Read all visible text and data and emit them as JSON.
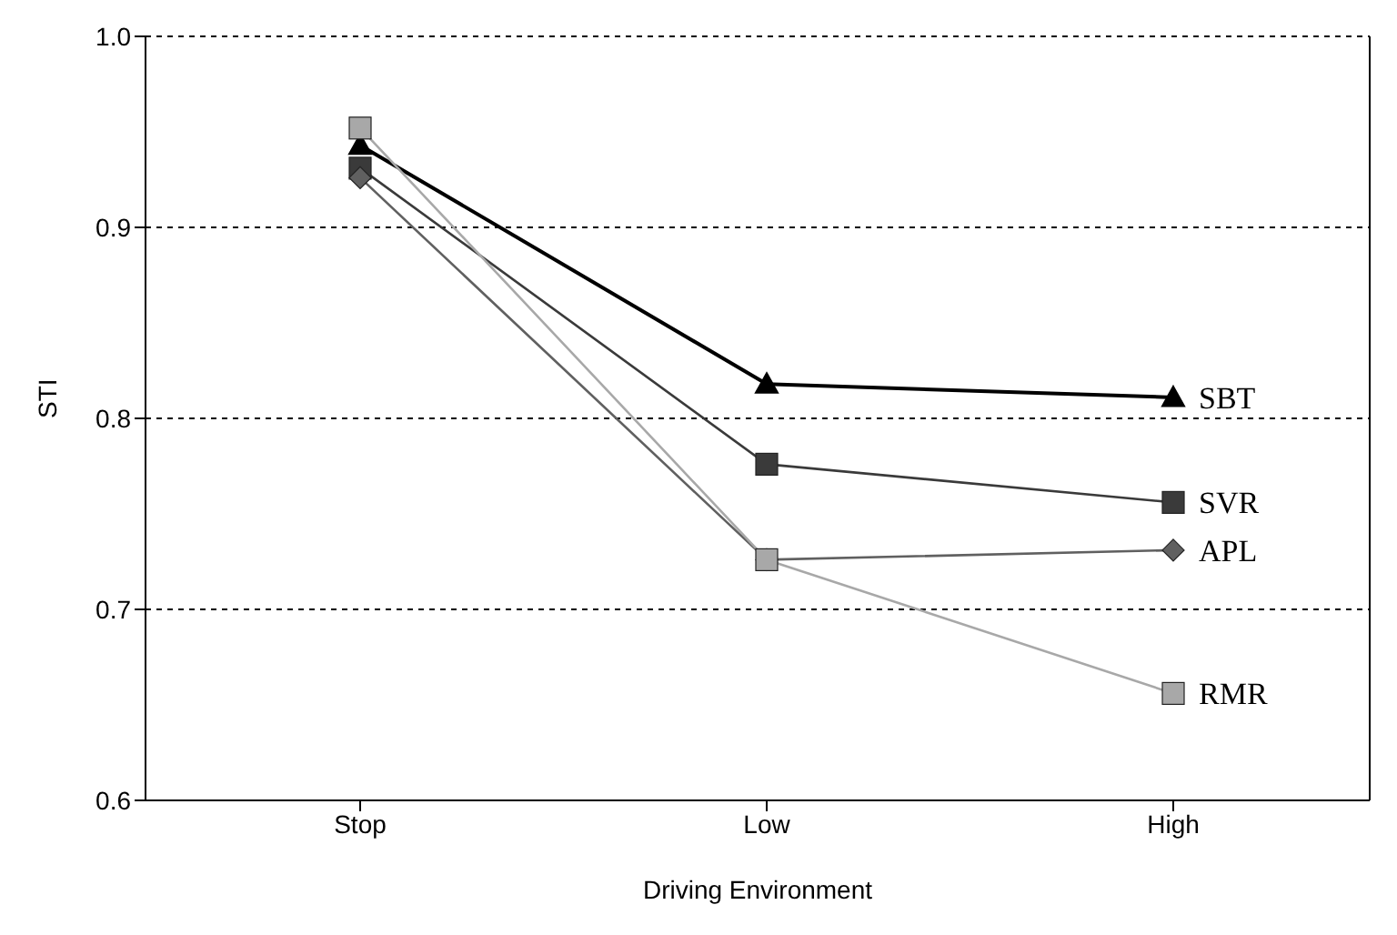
{
  "chart_data": {
    "type": "line",
    "xlabel": "Driving Environment",
    "ylabel": "STI",
    "categories": [
      "Stop",
      "Low",
      "High"
    ],
    "ylim": [
      0.6,
      1.0
    ],
    "yticks": [
      0.6,
      0.7,
      0.8,
      0.9,
      {
        "value": 1.0,
        "label": "1.0"
      }
    ],
    "grid": "y",
    "legend": false,
    "series": [
      {
        "name": "SBT",
        "color": "#000000",
        "marker": "triangle",
        "values": [
          0.943,
          0.818,
          0.811
        ]
      },
      {
        "name": "SVR",
        "color": "#3a3a3a",
        "marker": "square",
        "values": [
          0.931,
          0.776,
          0.756
        ]
      },
      {
        "name": "APL",
        "color": "#606060",
        "marker": "diamond",
        "values": [
          0.926,
          0.726,
          0.731
        ]
      },
      {
        "name": "RMR",
        "color": "#a8a8a8",
        "marker": "square",
        "values": [
          0.952,
          0.726,
          0.656
        ]
      }
    ]
  }
}
